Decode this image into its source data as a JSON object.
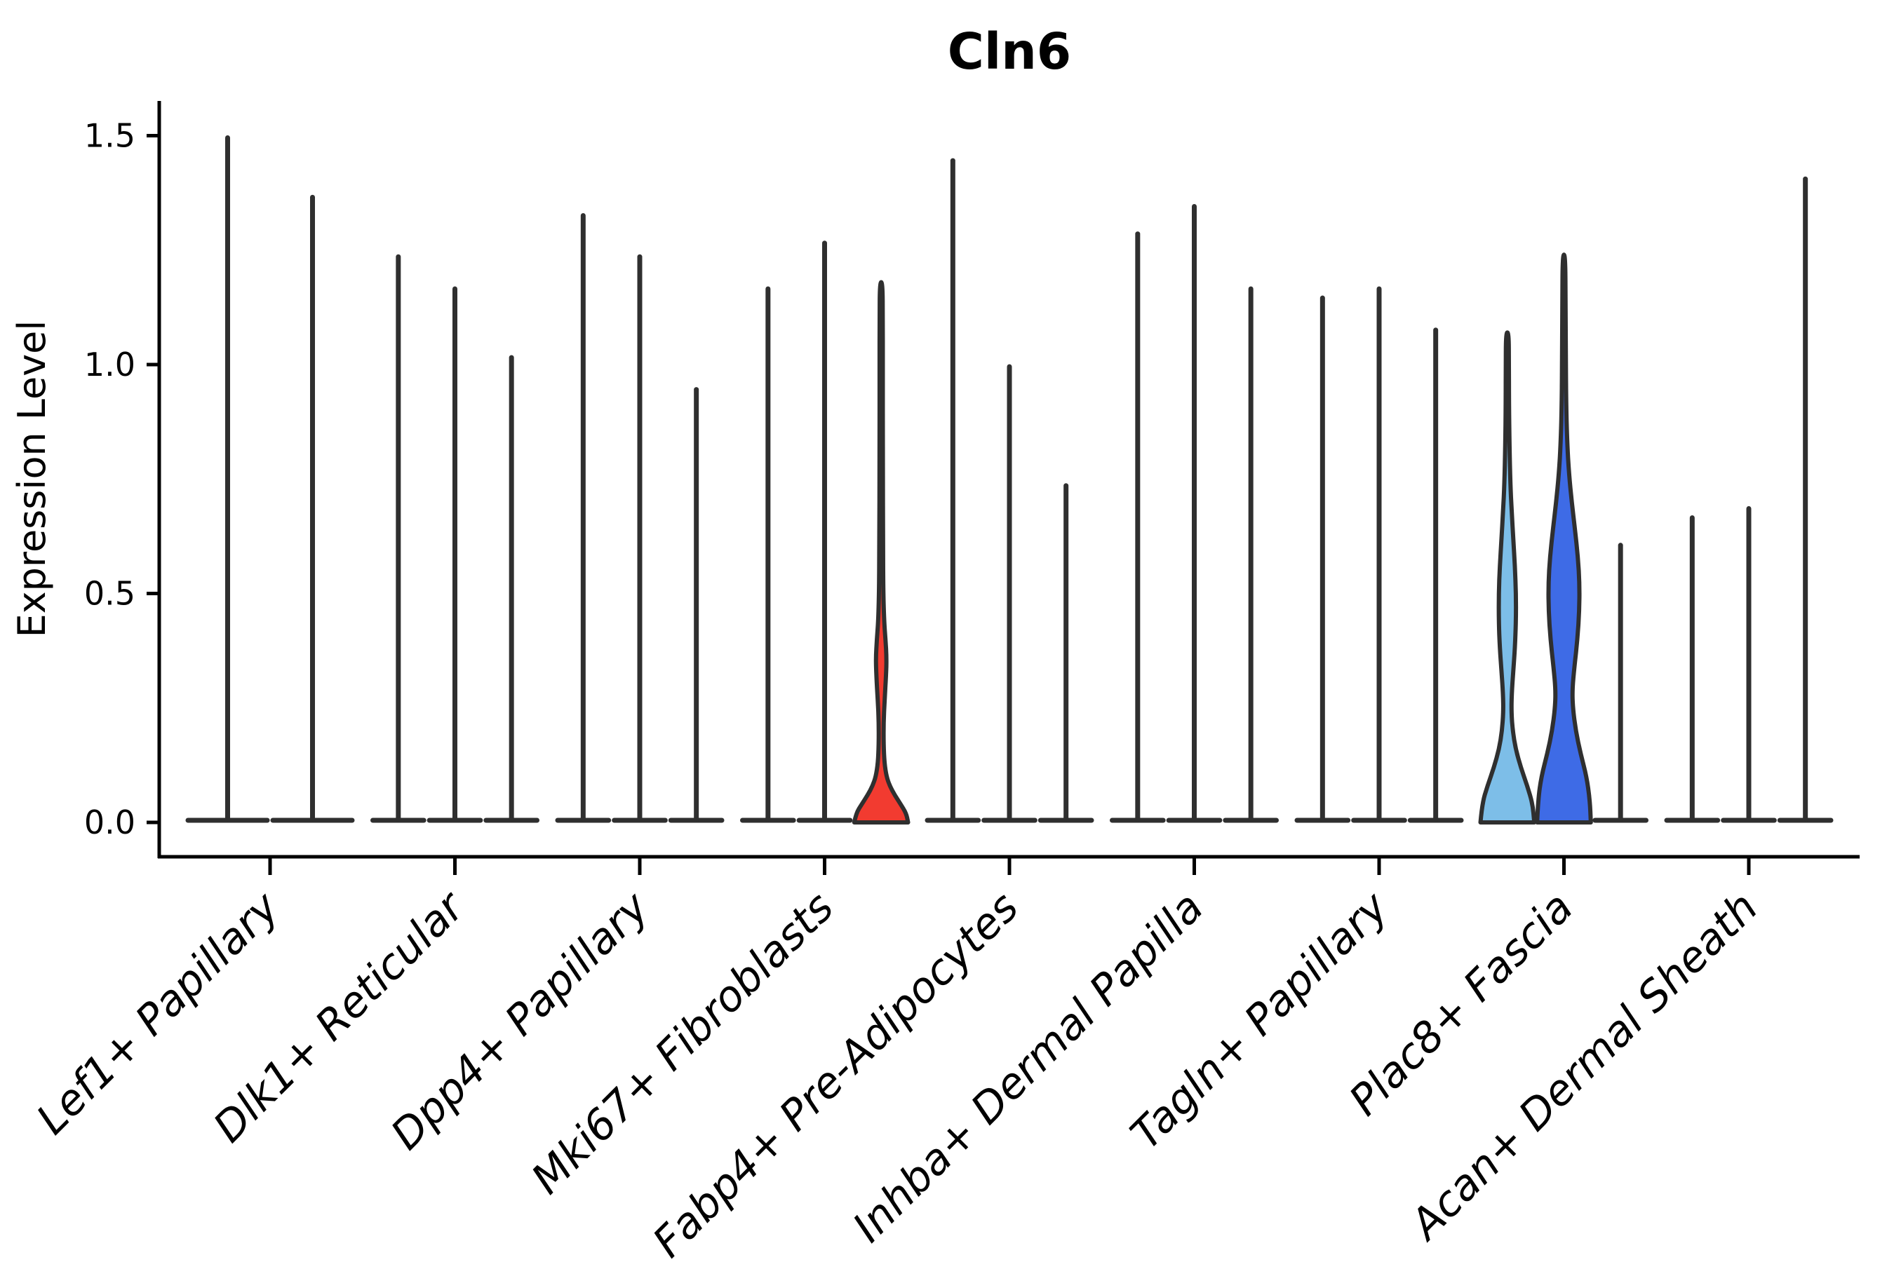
{
  "chart_data": {
    "type": "violin",
    "title": "Cln6",
    "ylabel": "Expression Level",
    "xlabel": "",
    "ylim": [
      -0.075,
      1.575
    ],
    "grid": false,
    "legend": "none",
    "x_tick_rotation_deg": 45,
    "yticks": [
      {
        "value": 0.0,
        "label": "0.0"
      },
      {
        "value": 0.5,
        "label": "0.5"
      },
      {
        "value": 1.0,
        "label": "1.0"
      },
      {
        "value": 1.5,
        "label": "1.5"
      }
    ],
    "colors": {
      "edge": "#2f2f2f",
      "background": "#ffffff",
      "text": "#000000",
      "highlight_red": "#f23b30",
      "highlight_light_blue": "#7dbee8",
      "highlight_royal_blue": "#3e6be6"
    },
    "groups": [
      {
        "category": "Lef1+ Papillary",
        "violins": [
          {
            "max": 1.5
          },
          {
            "max": 1.37
          }
        ]
      },
      {
        "category": "Dlk1+ Reticular",
        "violins": [
          {
            "max": 1.24
          },
          {
            "max": 1.17
          },
          {
            "max": 1.02
          }
        ]
      },
      {
        "category": "Dpp4+ Papillary",
        "violins": [
          {
            "max": 1.33
          },
          {
            "max": 1.24
          },
          {
            "max": 0.95
          }
        ]
      },
      {
        "category": "Mki67+ Fibroblasts",
        "violins": [
          {
            "max": 1.17
          },
          {
            "max": 1.27
          },
          {
            "max": 1.18,
            "fill": "#f23b30",
            "profile": [
              [
                0,
                1
              ],
              [
                0.02,
                0.93
              ],
              [
                0.04,
                0.72
              ],
              [
                0.06,
                0.5
              ],
              [
                0.08,
                0.32
              ],
              [
                0.1,
                0.2
              ],
              [
                0.13,
                0.12
              ],
              [
                0.17,
                0.09
              ],
              [
                0.22,
                0.09
              ],
              [
                0.27,
                0.13
              ],
              [
                0.32,
                0.18
              ],
              [
                0.36,
                0.2
              ],
              [
                0.4,
                0.16
              ],
              [
                0.44,
                0.11
              ],
              [
                0.5,
                0.08
              ],
              [
                0.6,
                0.07
              ],
              [
                0.8,
                0.06
              ],
              [
                1.0,
                0.06
              ],
              [
                1.1,
                0.06
              ],
              [
                1.18,
                0.05
              ]
            ]
          }
        ]
      },
      {
        "category": "Fabp4+ Pre-Adipocytes",
        "violins": [
          {
            "max": 1.45
          },
          {
            "max": 1.0
          },
          {
            "max": 0.74
          }
        ]
      },
      {
        "category": "Inhba+ Dermal Papilla",
        "violins": [
          {
            "max": 1.29
          },
          {
            "max": 1.35
          },
          {
            "max": 1.17
          }
        ]
      },
      {
        "category": "Tagln+ Papillary",
        "violins": [
          {
            "max": 1.15
          },
          {
            "max": 1.17
          },
          {
            "max": 1.08
          }
        ]
      },
      {
        "category": "Plac8+ Fascia",
        "violins": [
          {
            "max": 1.07,
            "fill": "#7dbee8",
            "profile": [
              [
                0,
                1
              ],
              [
                0.04,
                0.94
              ],
              [
                0.08,
                0.74
              ],
              [
                0.12,
                0.5
              ],
              [
                0.16,
                0.31
              ],
              [
                0.2,
                0.2
              ],
              [
                0.24,
                0.15
              ],
              [
                0.28,
                0.16
              ],
              [
                0.33,
                0.22
              ],
              [
                0.38,
                0.28
              ],
              [
                0.44,
                0.32
              ],
              [
                0.5,
                0.32
              ],
              [
                0.56,
                0.28
              ],
              [
                0.62,
                0.22
              ],
              [
                0.68,
                0.16
              ],
              [
                0.74,
                0.11
              ],
              [
                0.82,
                0.08
              ],
              [
                0.92,
                0.06
              ],
              [
                1.0,
                0.06
              ],
              [
                1.07,
                0.05
              ]
            ]
          },
          {
            "max": 1.24,
            "fill": "#3e6be6",
            "profile": [
              [
                0,
                1
              ],
              [
                0.05,
                0.96
              ],
              [
                0.1,
                0.84
              ],
              [
                0.15,
                0.62
              ],
              [
                0.2,
                0.44
              ],
              [
                0.25,
                0.33
              ],
              [
                0.29,
                0.31
              ],
              [
                0.34,
                0.39
              ],
              [
                0.4,
                0.5
              ],
              [
                0.46,
                0.57
              ],
              [
                0.52,
                0.58
              ],
              [
                0.58,
                0.52
              ],
              [
                0.64,
                0.41
              ],
              [
                0.7,
                0.29
              ],
              [
                0.76,
                0.19
              ],
              [
                0.83,
                0.12
              ],
              [
                0.92,
                0.08
              ],
              [
                1.02,
                0.07
              ],
              [
                1.13,
                0.06
              ],
              [
                1.24,
                0.05
              ]
            ]
          },
          {
            "max": 0.61
          }
        ]
      },
      {
        "category": "Acan+ Dermal Sheath",
        "violins": [
          {
            "max": 0.67
          },
          {
            "max": 0.69
          },
          {
            "max": 1.41
          }
        ]
      }
    ]
  }
}
